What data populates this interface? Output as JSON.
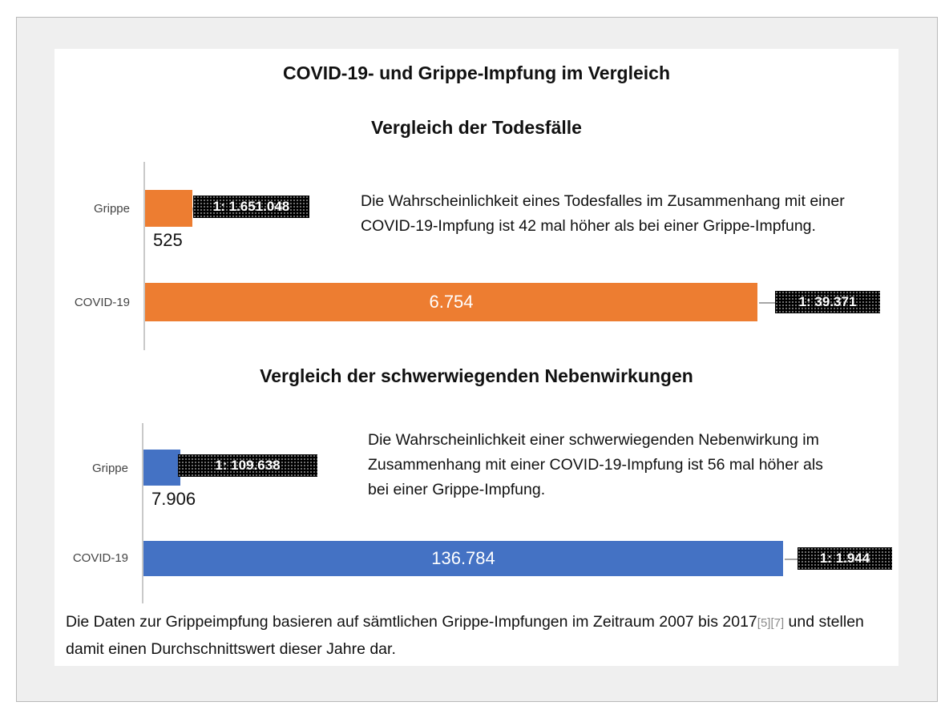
{
  "title": "COVID-19- und Grippe-Impfung im Vergleich",
  "chart_data": [
    {
      "type": "bar",
      "orientation": "horizontal",
      "title": "Vergleich der Todesfälle",
      "categories": [
        "Grippe",
        "COVID-19"
      ],
      "values": [
        525,
        6754
      ],
      "value_labels": [
        "525",
        "6.754"
      ],
      "ratio_labels": [
        "1: 1.651.048",
        "1: 39.371"
      ],
      "color": "#ED7D31",
      "note": "Die Wahrscheinlichkeit eines Todesfalles im Zusammenhang mit einer COVID-19-Impfung ist 42 mal höher als bei einer Grippe-Impfung."
    },
    {
      "type": "bar",
      "orientation": "horizontal",
      "title": "Vergleich der schwerwiegenden Nebenwirkungen",
      "categories": [
        "Grippe",
        "COVID-19"
      ],
      "values": [
        7906,
        136784
      ],
      "value_labels": [
        "7.906",
        "136.784"
      ],
      "ratio_labels": [
        "1: 109.638",
        "1: 1.944"
      ],
      "color": "#4472C4",
      "note": "Die Wahrscheinlichkeit einer schwerwiegenden Nebenwirkung im Zusammenhang mit einer COVID-19-Impfung ist 56 mal höher als bei einer Grippe-Impfung."
    }
  ],
  "footnote": {
    "text_before": "Die Daten zur Grippeimpfung basieren auf sämtlichen Grippe-Impfungen im Zeitraum 2007 bis 2017",
    "refs": "[5][7]",
    "text_after": " und stellen damit einen Durchschnittswert dieser Jahre dar."
  }
}
